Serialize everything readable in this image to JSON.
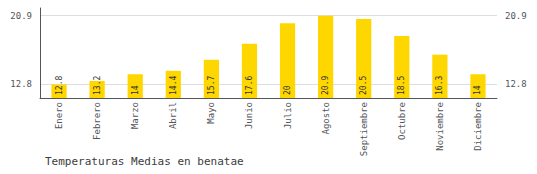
{
  "chart_data": {
    "type": "bar",
    "title": "Temperaturas Medias en benatae",
    "categories": [
      "Enero",
      "Febrero",
      "Marzo",
      "Abril",
      "Mayo",
      "Junio",
      "Julio",
      "Agosto",
      "Septiembre",
      "Octubre",
      "Noviembre",
      "Diciembre"
    ],
    "values": [
      12.8,
      13.2,
      14.0,
      14.4,
      15.7,
      17.6,
      20.0,
      20.9,
      20.5,
      18.5,
      16.3,
      14.0
    ],
    "color": "#FFD700",
    "ylim": [
      11.2,
      21.8
    ],
    "yticks": [
      12.8,
      20.9
    ],
    "grid": true,
    "data_labels": true
  }
}
